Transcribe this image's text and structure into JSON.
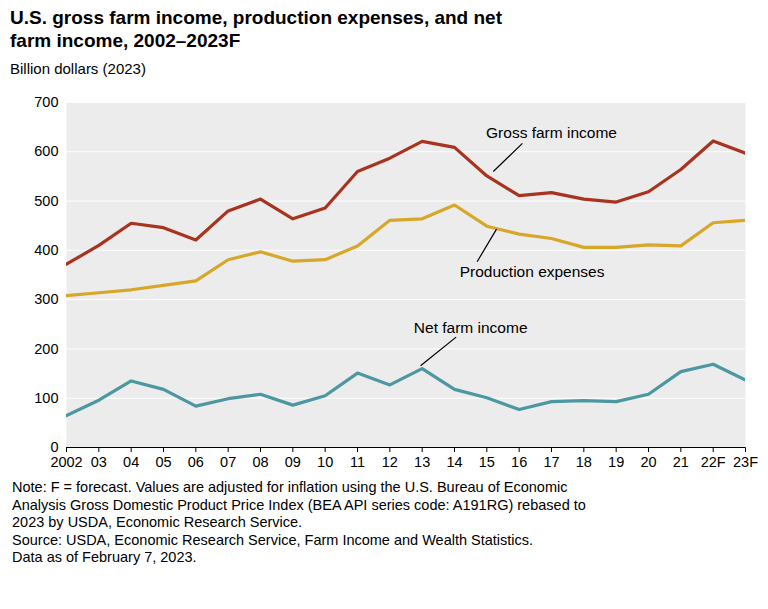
{
  "chart_data": {
    "type": "line",
    "title": "U.S. gross farm income, production expenses, and net farm income, 2002–2023F",
    "y_label": "Billion dollars (2023)",
    "categories": [
      "2002",
      "03",
      "04",
      "05",
      "06",
      "07",
      "08",
      "09",
      "10",
      "11",
      "12",
      "13",
      "14",
      "15",
      "16",
      "17",
      "18",
      "19",
      "20",
      "21",
      "22F",
      "23F"
    ],
    "series": [
      {
        "name": "Gross farm income",
        "color": "#a83420",
        "values": [
          372,
          410,
          455,
          446,
          421,
          480,
          504,
          464,
          486,
          560,
          587,
          621,
          609,
          551,
          511,
          517,
          504,
          498,
          519,
          564,
          622,
          597
        ]
      },
      {
        "name": "Production expenses",
        "color": "#d8a628",
        "values": [
          308,
          314,
          320,
          329,
          338,
          381,
          397,
          378,
          381,
          409,
          461,
          464,
          492,
          449,
          433,
          424,
          406,
          406,
          411,
          409,
          456,
          461
        ]
      },
      {
        "name": "Net farm income",
        "color": "#4b97a2",
        "values": [
          65,
          96,
          135,
          118,
          84,
          99,
          108,
          86,
          105,
          151,
          127,
          160,
          118,
          101,
          77,
          93,
          95,
          93,
          108,
          154,
          169,
          137
        ]
      }
    ],
    "ylim": [
      0,
      700
    ],
    "yticks": [
      0,
      100,
      200,
      300,
      400,
      500,
      600,
      700
    ],
    "grid": true,
    "notes": [
      "Note: F = forecast. Values are adjusted for inflation using the U.S. Bureau of Economic",
      "Analysis Gross Domestic Product Price Index (BEA API series code: A191RG) rebased to",
      "2023 by USDA, Economic Research Service.",
      "Source: USDA, Economic Research Service, Farm Income and Wealth Statistics.",
      "Data as of February 7, 2023."
    ]
  }
}
